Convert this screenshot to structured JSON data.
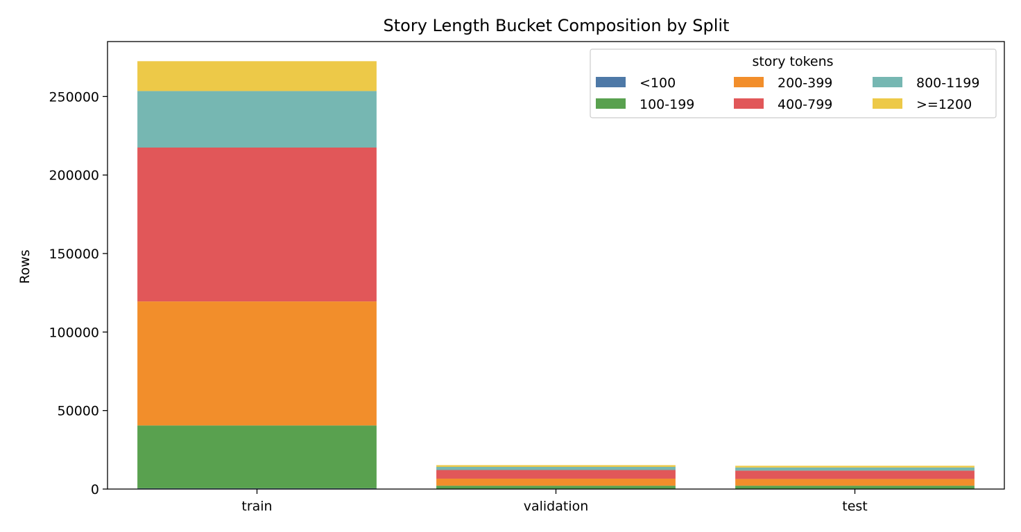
{
  "chart_data": {
    "type": "bar",
    "stacked": true,
    "title": "Story Length Bucket Composition by Split",
    "xlabel": "",
    "ylabel": "Rows",
    "categories": [
      "train",
      "validation",
      "test"
    ],
    "ylim": [
      0,
      285000
    ],
    "yticks": [
      0,
      50000,
      100000,
      150000,
      200000,
      250000
    ],
    "ytick_labels": [
      "0",
      "50000",
      "100000",
      "150000",
      "200000",
      "250000"
    ],
    "grid": false,
    "legend": {
      "title": "story tokens",
      "placement": "top-right",
      "columns": 3
    },
    "series": [
      {
        "name": "<100",
        "color": "#4e79a7",
        "values": [
          500,
          30,
          30
        ]
      },
      {
        "name": "100-199",
        "color": "#59a14f",
        "values": [
          40000,
          2100,
          2100
        ]
      },
      {
        "name": "200-399",
        "color": "#f28e2b",
        "values": [
          79000,
          4500,
          4300
        ]
      },
      {
        "name": "400-799",
        "color": "#e15759",
        "values": [
          98000,
          5500,
          5300
        ]
      },
      {
        "name": "800-1199",
        "color": "#76b7b2",
        "values": [
          36000,
          2000,
          2000
        ]
      },
      {
        "name": ">=1200",
        "color": "#edc948",
        "values": [
          19000,
          1100,
          1100
        ]
      }
    ]
  }
}
